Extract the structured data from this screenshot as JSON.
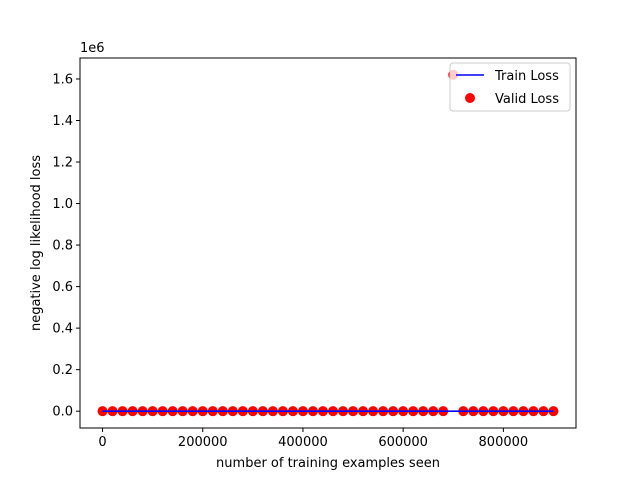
{
  "chart_data": {
    "type": "line",
    "xlabel": "number of training examples seen",
    "ylabel": "negative log likelihood loss",
    "y_offset_label": "1e6",
    "xlim": [
      -45000,
      945000
    ],
    "ylim": [
      -81000,
      1701000
    ],
    "x_ticks": [
      0,
      200000,
      400000,
      600000,
      800000
    ],
    "x_tick_labels": [
      "0",
      "200000",
      "400000",
      "600000",
      "800000"
    ],
    "y_ticks": [
      0,
      200000,
      400000,
      600000,
      800000,
      1000000,
      1200000,
      1400000,
      1600000
    ],
    "y_tick_labels": [
      "0.0",
      "0.2",
      "0.4",
      "0.6",
      "0.8",
      "1.0",
      "1.2",
      "1.4",
      "1.6"
    ],
    "grid": false,
    "legend_position": "top-right",
    "series": [
      {
        "name": "Train Loss",
        "kind": "line",
        "color": "#0000ff",
        "x": [
          0,
          900000
        ],
        "y": [
          0,
          0
        ]
      },
      {
        "name": "Valid Loss",
        "kind": "scatter",
        "color": "#ff0000",
        "x": [
          0,
          20000,
          40000,
          60000,
          80000,
          100000,
          120000,
          140000,
          160000,
          180000,
          200000,
          220000,
          240000,
          260000,
          280000,
          300000,
          320000,
          340000,
          360000,
          380000,
          400000,
          420000,
          440000,
          460000,
          480000,
          500000,
          520000,
          540000,
          560000,
          580000,
          600000,
          620000,
          640000,
          660000,
          680000,
          700000,
          720000,
          740000,
          760000,
          780000,
          800000,
          820000,
          840000,
          860000,
          880000,
          900000
        ],
        "y": [
          0,
          0,
          0,
          0,
          0,
          0,
          0,
          0,
          0,
          0,
          0,
          0,
          0,
          0,
          0,
          0,
          0,
          0,
          0,
          0,
          0,
          0,
          0,
          0,
          0,
          0,
          0,
          0,
          0,
          0,
          0,
          0,
          0,
          0,
          0,
          1620000,
          0,
          0,
          0,
          0,
          0,
          0,
          0,
          0,
          0,
          0
        ]
      }
    ]
  }
}
